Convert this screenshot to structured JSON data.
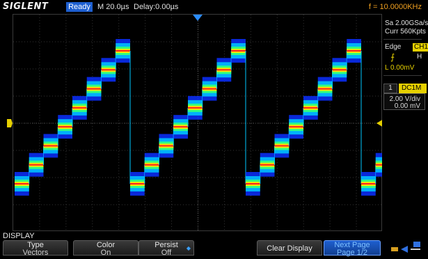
{
  "topbar": {
    "brand": "SIGLENT",
    "status": "Ready",
    "timebase": "M 20.0µs",
    "delay": "Delay:0.00µs",
    "frequency": "f = 10.0000KHz"
  },
  "right_panel": {
    "sample_rate": "Sa 2.00GSa/s",
    "memory": "Curr 560Kpts",
    "trigger_type": "Edge",
    "trigger_source": "CH1",
    "trigger_slope_icon": "rising-edge-icon",
    "trigger_level": "L  0.00mV",
    "trigger_mode": "H",
    "channel_number": "1",
    "channel_coupling": "DC1M",
    "channel_scale": "2.00 V/div",
    "channel_offset": "0.00 mV"
  },
  "waveform": {
    "type": "staircase",
    "steps_per_period": 8,
    "period_us": 100,
    "trace_colors": [
      "#0a2fff",
      "#00c8ff",
      "#30ff80",
      "#ffe000",
      "#ff2020"
    ],
    "channel_color": "#e6d000"
  },
  "menu": {
    "title": "DISPLAY",
    "buttons": [
      {
        "label": "Type",
        "value": "Vectors"
      },
      {
        "label": "Color",
        "value": "On"
      },
      {
        "label": "Persist",
        "value": "Off"
      },
      {
        "label": "Clear Display",
        "value": ""
      },
      {
        "label": "Next Page",
        "value": "Page 1/2"
      }
    ]
  }
}
